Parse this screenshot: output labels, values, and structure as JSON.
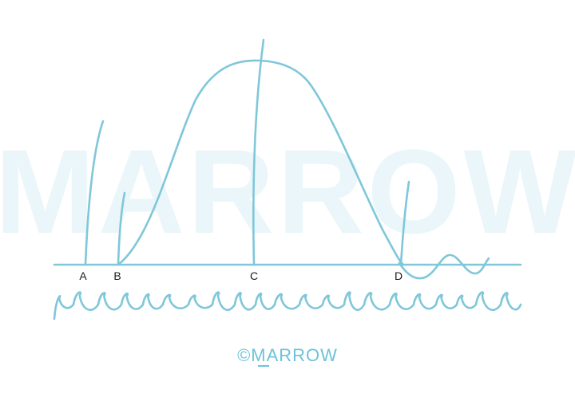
{
  "watermark": "MARROW",
  "labels": [
    "A",
    "B",
    "C",
    "D"
  ],
  "brand": "©MARROW",
  "colors": {
    "line": "#7fc7d9",
    "watermark": "#eaf6fa",
    "brand": "#6cc3d9",
    "label": "#1a1a1a"
  }
}
